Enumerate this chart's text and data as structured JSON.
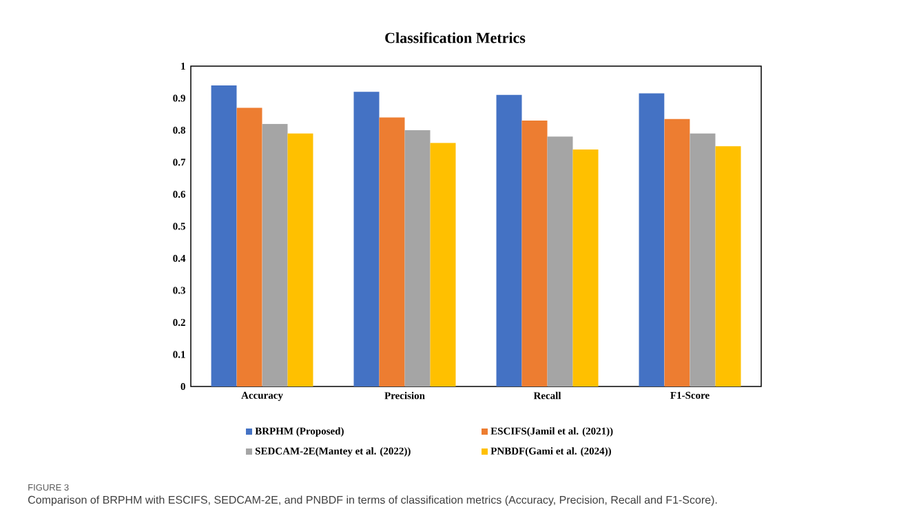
{
  "chart_data": {
    "type": "bar",
    "title": "Classification Metrics",
    "categories": [
      "Accuracy",
      "Precision",
      "Recall",
      "F1-Score"
    ],
    "series": [
      {
        "name": "BRPHM (Proposed)",
        "color": "#4472c4",
        "values": [
          0.94,
          0.92,
          0.91,
          0.915
        ]
      },
      {
        "name": "ESCIFS(Jamil et al. (2021))",
        "color": "#ed7d31",
        "values": [
          0.87,
          0.84,
          0.83,
          0.835
        ]
      },
      {
        "name": "SEDCAM-2E(Mantey et al. (2022))",
        "color": "#a5a5a5",
        "values": [
          0.82,
          0.8,
          0.78,
          0.79
        ]
      },
      {
        "name": "PNBDF(Gami et al. (2024))",
        "color": "#ffc000",
        "values": [
          0.79,
          0.76,
          0.74,
          0.75
        ]
      }
    ],
    "ylim": [
      0,
      1
    ],
    "yticks": [
      0,
      0.1,
      0.2,
      0.3,
      0.4,
      0.5,
      0.6,
      0.7,
      0.8,
      0.9,
      1
    ],
    "grid": false,
    "legend": "bottom",
    "annotations": [
      "FIGURE 3",
      "Comparison of BRPHM with ESCIFS, SEDCAM-2E, and PNBDF in terms of classification metrics (Accuracy, Precision, Recall and F1-Score)."
    ]
  }
}
